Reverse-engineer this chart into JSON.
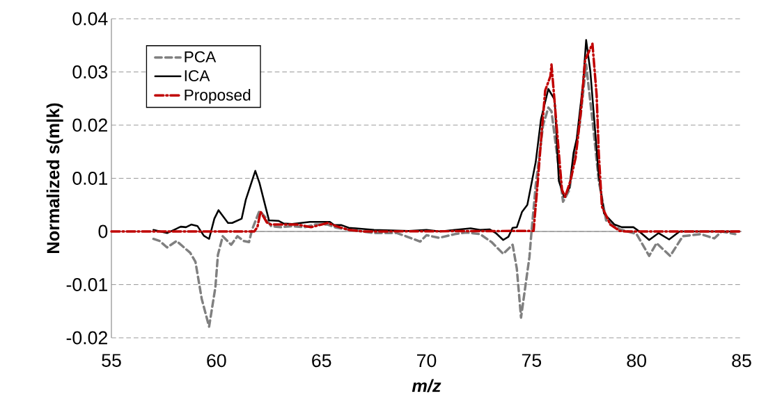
{
  "chart_data": {
    "type": "line",
    "xlabel": "m/z",
    "ylabel": "Normalized s(m|k)",
    "xlim": [
      55,
      85
    ],
    "xticks": [
      55,
      60,
      65,
      70,
      75,
      80,
      85
    ],
    "ylim": [
      -0.02,
      0.04
    ],
    "yticks": [
      -0.02,
      -0.01,
      0,
      0.01,
      0.02,
      0.03,
      0.04
    ],
    "grid": "y",
    "legend": "top left",
    "marker": "none",
    "series": [
      {
        "name": "PCA",
        "color": "#808080",
        "line_style": "dashed",
        "x": [
          57.0,
          57.3,
          57.65,
          58.1,
          58.75,
          59.0,
          59.3,
          59.65,
          59.95,
          60.07,
          60.3,
          60.7,
          61.0,
          61.3,
          61.55,
          61.7,
          62.05,
          62.3,
          62.6,
          63.05,
          63.6,
          64.2,
          64.7,
          65.3,
          65.7,
          66.95,
          67.5,
          68.6,
          69.7,
          70.0,
          70.6,
          71.35,
          71.9,
          72.55,
          73.1,
          73.65,
          74.1,
          74.3,
          74.5,
          74.9,
          75.0,
          75.2,
          75.55,
          75.8,
          75.95,
          76.2,
          76.5,
          76.8,
          77.0,
          77.3,
          77.6,
          77.95,
          78.2,
          78.55,
          79.2,
          79.85,
          80.0,
          80.6,
          80.95,
          81.6,
          82.2,
          83.05,
          83.7,
          84.05,
          84.7
        ],
        "values": [
          -0.0014,
          -0.0018,
          -0.003,
          -0.0018,
          -0.004,
          -0.0057,
          -0.0127,
          -0.0179,
          -0.0105,
          -0.0044,
          -0.0009,
          -0.0025,
          -0.0009,
          -0.0018,
          -0.002,
          0.0004,
          0.0039,
          0.0028,
          0.001,
          0.0008,
          0.001,
          0.0008,
          0.0013,
          0.0013,
          0.0007,
          0.0,
          -0.0003,
          -0.0003,
          -0.0019,
          -0.0007,
          -0.0012,
          -0.0005,
          -0.0002,
          -0.0005,
          -0.002,
          -0.0042,
          -0.0025,
          -0.007,
          -0.0162,
          -0.0048,
          0.0,
          0.0087,
          0.02,
          0.0233,
          0.0226,
          0.0148,
          0.0056,
          0.0078,
          0.013,
          0.0204,
          0.0314,
          0.0191,
          0.0095,
          0.0021,
          0.0004,
          -0.0003,
          -0.0005,
          -0.0046,
          -0.0022,
          -0.0046,
          -0.0009,
          -0.0005,
          -0.0013,
          0.0,
          -0.0005
        ]
      },
      {
        "name": "ICA",
        "color": "#000000",
        "line_style": "solid",
        "x": [
          57.0,
          57.65,
          58.3,
          58.55,
          58.8,
          59.1,
          59.4,
          59.65,
          59.9,
          60.1,
          60.55,
          60.75,
          61.2,
          61.4,
          61.85,
          62.05,
          62.5,
          62.95,
          63.2,
          63.6,
          64.45,
          65.4,
          65.6,
          65.95,
          66.3,
          67.5,
          69.15,
          70.0,
          70.65,
          71.35,
          72.1,
          72.55,
          73.0,
          73.3,
          73.65,
          73.9,
          74.1,
          74.3,
          74.55,
          74.8,
          75.2,
          75.45,
          75.8,
          76.1,
          76.3,
          76.55,
          76.8,
          77.0,
          77.15,
          77.45,
          77.6,
          77.8,
          78.2,
          78.45,
          78.95,
          79.3,
          79.85,
          80.1,
          80.6,
          81.05,
          81.55,
          82.05,
          83.15,
          84.9
        ],
        "values": [
          0.0003,
          -0.0003,
          0.0009,
          0.0008,
          0.0013,
          0.001,
          -0.0008,
          -0.0014,
          0.0024,
          0.004,
          0.0016,
          0.0016,
          0.0024,
          0.006,
          0.0114,
          0.0091,
          0.0021,
          0.002,
          0.0015,
          0.0014,
          0.0018,
          0.0018,
          0.0012,
          0.0012,
          0.0007,
          0.0003,
          0.0001,
          0.0003,
          0.0,
          0.0003,
          0.0006,
          0.0003,
          0.0004,
          -0.0003,
          -0.0016,
          -0.001,
          0.0007,
          0.0008,
          0.0037,
          0.005,
          0.0131,
          0.0211,
          0.0268,
          0.0248,
          0.0095,
          0.0065,
          0.0082,
          0.0148,
          0.0174,
          0.0278,
          0.036,
          0.0301,
          0.0105,
          0.0034,
          0.0013,
          0.0008,
          0.0008,
          0.0001,
          -0.0016,
          -0.0003,
          -0.0015,
          0.0,
          0.0,
          0.0
        ]
      },
      {
        "name": "Proposed",
        "color": "#c00000",
        "line_style": "dashdot",
        "x": [
          55.0,
          61.8,
          61.95,
          62.1,
          62.4,
          62.6,
          63.85,
          64.5,
          65.3,
          65.7,
          66.3,
          67.0,
          75.1,
          75.15,
          75.3,
          75.45,
          75.65,
          75.9,
          75.95,
          76.1,
          76.3,
          76.45,
          76.6,
          76.85,
          77.1,
          77.35,
          77.55,
          77.9,
          78.1,
          78.2,
          78.35,
          78.75,
          79.2,
          79.5,
          84.9
        ],
        "values": [
          0.0,
          0.0,
          0.0008,
          0.0037,
          0.0017,
          0.0013,
          0.0013,
          0.0008,
          0.0016,
          0.001,
          0.0003,
          0.0,
          0.0001,
          0.0026,
          0.0095,
          0.017,
          0.0265,
          0.0292,
          0.0314,
          0.0243,
          0.0148,
          0.0078,
          0.0065,
          0.0095,
          0.0139,
          0.0226,
          0.0322,
          0.0353,
          0.0256,
          0.0148,
          0.0047,
          0.0013,
          0.0001,
          0.0,
          0.0
        ]
      }
    ]
  }
}
